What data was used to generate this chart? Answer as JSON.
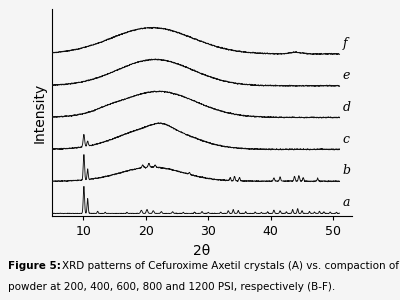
{
  "title": "",
  "xlabel": "2θ",
  "ylabel": "Intensity",
  "xlim": [
    5,
    51
  ],
  "background_color": "#f5f5f5",
  "plot_bg_color": "#f5f5f5",
  "line_color": "#111111",
  "labels": [
    "a",
    "b",
    "c",
    "d",
    "e",
    "f"
  ],
  "tick_fontsize": 9,
  "label_fontsize": 9,
  "axis_fontsize": 10,
  "xticks": [
    10,
    20,
    30,
    40,
    50
  ],
  "offsets": [
    0.0,
    0.14,
    0.28,
    0.42,
    0.56,
    0.7
  ],
  "scale": 0.12
}
